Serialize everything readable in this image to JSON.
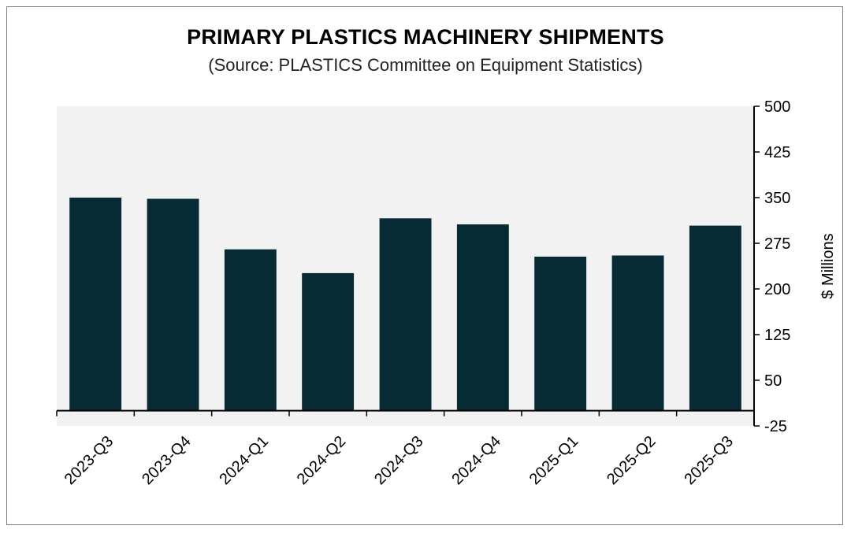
{
  "chart_data": {
    "type": "bar",
    "title": "PRIMARY PLASTICS MACHINERY SHIPMENTS",
    "subtitle": "(Source: PLASTICS Committee on Equipment Statistics)",
    "categories": [
      "2023-Q3",
      "2023-Q4",
      "2024-Q1",
      "2024-Q2",
      "2024-Q3",
      "2024-Q4",
      "2025-Q1",
      "2025-Q2",
      "2025-Q3"
    ],
    "values": [
      350,
      348,
      265,
      226,
      316,
      306,
      253,
      255,
      304
    ],
    "xlabel": "",
    "ylabel": "$ Millions",
    "ylim": [
      -25,
      500
    ],
    "yticks": [
      -25,
      50,
      125,
      200,
      275,
      350,
      425,
      500
    ],
    "ytick_labels": [
      "-25",
      "50",
      "125",
      "200",
      "275",
      "350",
      "425",
      "500"
    ],
    "y_axis_position": "right",
    "bar_color": "#062b35",
    "plot_background": "#f2f2f2",
    "grid": false,
    "legend": "none"
  }
}
